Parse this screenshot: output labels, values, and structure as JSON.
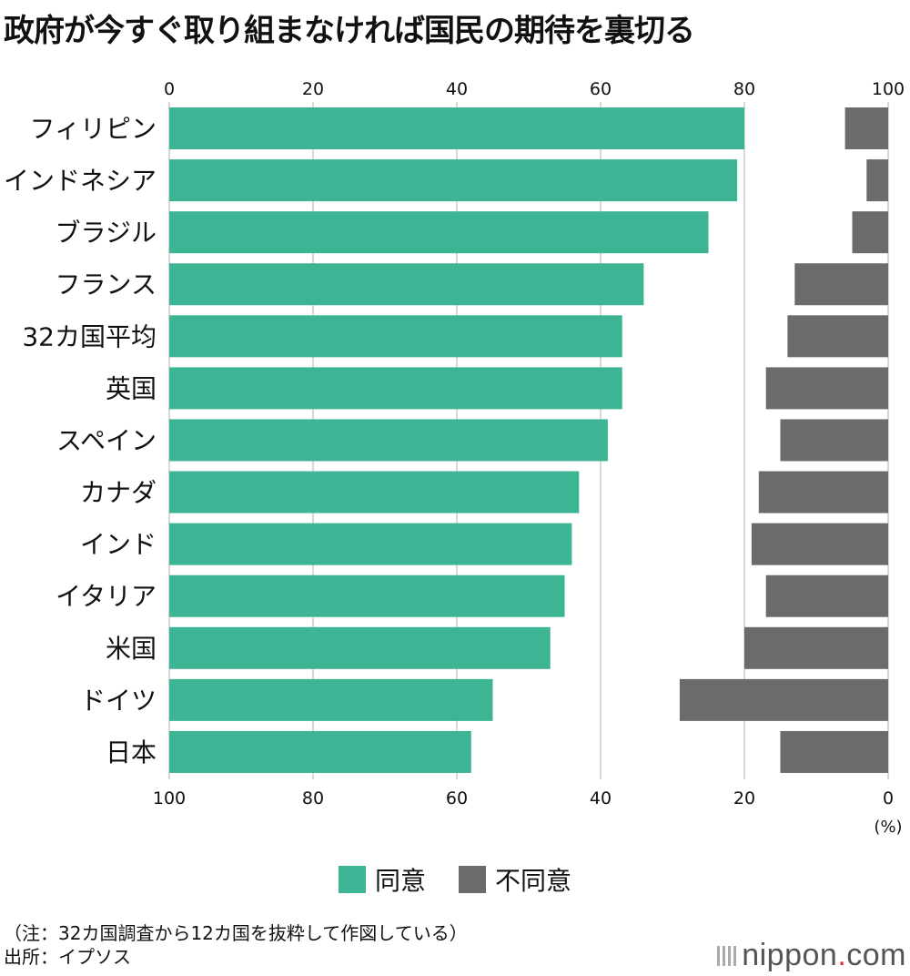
{
  "title": "政府が今すぐ取り組まなければ国民の期待を裏切る",
  "chart_data": {
    "type": "bar",
    "title": "政府が今すぐ取り組まなければ国民の期待を裏切る",
    "unit": "(%)",
    "top_ticks": [
      "0",
      "20",
      "40",
      "60",
      "80",
      "100"
    ],
    "bottom_ticks": [
      "100",
      "80",
      "60",
      "40",
      "20",
      "0"
    ],
    "xlim": [
      0,
      100
    ],
    "categories": [
      "フィリピン",
      "インドネシア",
      "ブラジル",
      "フランス",
      "32カ国平均",
      "英国",
      "スペイン",
      "カナダ",
      "インド",
      "イタリア",
      "米国",
      "ドイツ",
      "日本"
    ],
    "series": [
      {
        "name": "同意",
        "color": "#3db595",
        "direction": "left-to-right",
        "values": [
          80,
          79,
          75,
          66,
          63,
          63,
          61,
          57,
          56,
          55,
          53,
          45,
          42
        ]
      },
      {
        "name": "不同意",
        "color": "#6b6b6b",
        "direction": "right-to-left",
        "values": [
          6,
          3,
          5,
          13,
          14,
          17,
          15,
          18,
          19,
          17,
          20,
          29,
          15
        ]
      }
    ],
    "legend": [
      "同意",
      "不同意"
    ],
    "grid": true
  },
  "footnote": {
    "line1": "（注：32カ国調査から12カ国を抜粋して作図している）",
    "line2": "出所：イプソス"
  },
  "logo": {
    "main": "nippon",
    "dot": ".",
    "suffix": "com"
  }
}
